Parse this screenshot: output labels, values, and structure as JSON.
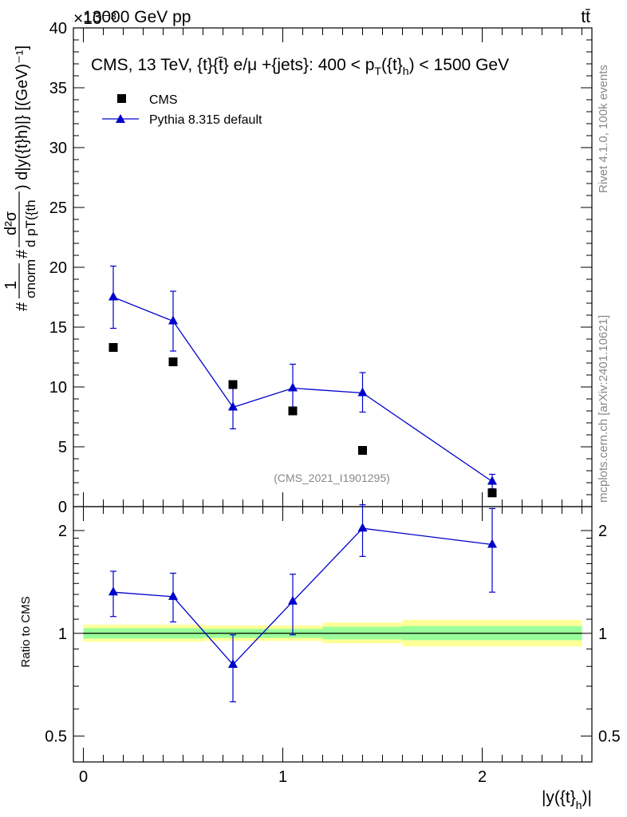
{
  "header": {
    "energy_label": "13000 GeV pp",
    "process_label": "tt̄",
    "exponent_label": "×10⁻³"
  },
  "side_labels": {
    "rivet": "Rivet 4.1.0,  100k events",
    "mcplots": "mcplots.cern.ch [arXiv:2401.10621]"
  },
  "chart_data": [
    {
      "type": "scatter",
      "panel": "main",
      "title": "CMS, 13 TeV, {t}{t̄} e/μ +{jets}: 400 <  p_T({t}_h) < 1500 GeV",
      "title_parts": {
        "pre": "CMS, 13 TeV, {t}{t̄} e/μ +{jets}: 400 <  p",
        "sub1": "T",
        "mid": "({t}",
        "sub2": "h",
        "post": ") < 1500 GeV"
      },
      "watermark": "(CMS_2021_I1901295)",
      "ylabel": "# 1/σ_norm  # d²σ / d p_T({t}_h) d|y({t}_h)| [(GeV)⁻¹]",
      "ylabel_parts": {
        "hash1": "#",
        "one": "1",
        "sigma_norm": "σnorm",
        "hash2": "#",
        "numer": "d²σ",
        "denom": "d pT({th",
        "tail": ") d|y({t}h)|} [(GeV)⁻¹]"
      },
      "ylim": [
        0,
        40
      ],
      "yticks": [
        0,
        5,
        10,
        15,
        20,
        25,
        30,
        35,
        40
      ],
      "xlim": [
        -0.05,
        2.55
      ],
      "legend": [
        {
          "label": "CMS",
          "marker": "square",
          "color": "#000000"
        },
        {
          "label": "Pythia 8.315 default",
          "marker": "triangle",
          "color": "#0000cc"
        }
      ],
      "series": [
        {
          "name": "CMS",
          "x": [
            0.15,
            0.45,
            0.75,
            1.05,
            1.4,
            2.05
          ],
          "y": [
            13.3,
            12.1,
            10.2,
            8.0,
            4.7,
            1.15
          ]
        },
        {
          "name": "Pythia 8.315 default",
          "x": [
            0.15,
            0.45,
            0.75,
            1.05,
            1.4,
            2.05
          ],
          "y": [
            17.5,
            15.5,
            8.3,
            9.9,
            9.5,
            2.1
          ],
          "err_lo": [
            2.6,
            2.5,
            1.8,
            2.0,
            1.6,
            0.6
          ],
          "err_hi": [
            2.6,
            2.5,
            1.8,
            2.0,
            1.7,
            0.6
          ]
        }
      ]
    },
    {
      "type": "scatter",
      "panel": "ratio",
      "ylabel": "Ratio to CMS",
      "xlabel": "|y({t}_h)|",
      "xlabel_parts": {
        "pre": "|y({t}",
        "sub": "h",
        "post": ")|"
      },
      "yscale": "log",
      "ylim": [
        0.42,
        2.35
      ],
      "yticks": [
        0.5,
        1,
        2
      ],
      "ytick_labels": [
        "0.5",
        "1",
        "2"
      ],
      "xticks": [
        0,
        1,
        2
      ],
      "xtick_labels": [
        "0",
        "1",
        "2"
      ],
      "bands": [
        {
          "x0": 0.0,
          "x1": 0.3,
          "yellow": [
            0.945,
            1.06
          ],
          "green": [
            0.965,
            1.035
          ]
        },
        {
          "x0": 0.3,
          "x1": 0.6,
          "yellow": [
            0.945,
            1.06
          ],
          "green": [
            0.965,
            1.035
          ]
        },
        {
          "x0": 0.6,
          "x1": 0.9,
          "yellow": [
            0.95,
            1.055
          ],
          "green": [
            0.97,
            1.03
          ]
        },
        {
          "x0": 0.9,
          "x1": 1.2,
          "yellow": [
            0.95,
            1.055
          ],
          "green": [
            0.97,
            1.03
          ]
        },
        {
          "x0": 1.2,
          "x1": 1.6,
          "yellow": [
            0.935,
            1.075
          ],
          "green": [
            0.96,
            1.045
          ]
        },
        {
          "x0": 1.6,
          "x1": 2.5,
          "yellow": [
            0.915,
            1.095
          ],
          "green": [
            0.955,
            1.05
          ]
        }
      ],
      "series": [
        {
          "name": "Pythia 8.315 default",
          "x": [
            0.15,
            0.45,
            0.75,
            1.05,
            1.4,
            2.05
          ],
          "y": [
            1.32,
            1.28,
            0.81,
            1.24,
            2.03,
            1.82
          ],
          "err_lo": [
            0.2,
            0.2,
            0.18,
            0.25,
            0.35,
            0.5
          ],
          "err_hi": [
            0.2,
            0.22,
            0.18,
            0.25,
            0.35,
            0.5
          ]
        }
      ]
    }
  ]
}
